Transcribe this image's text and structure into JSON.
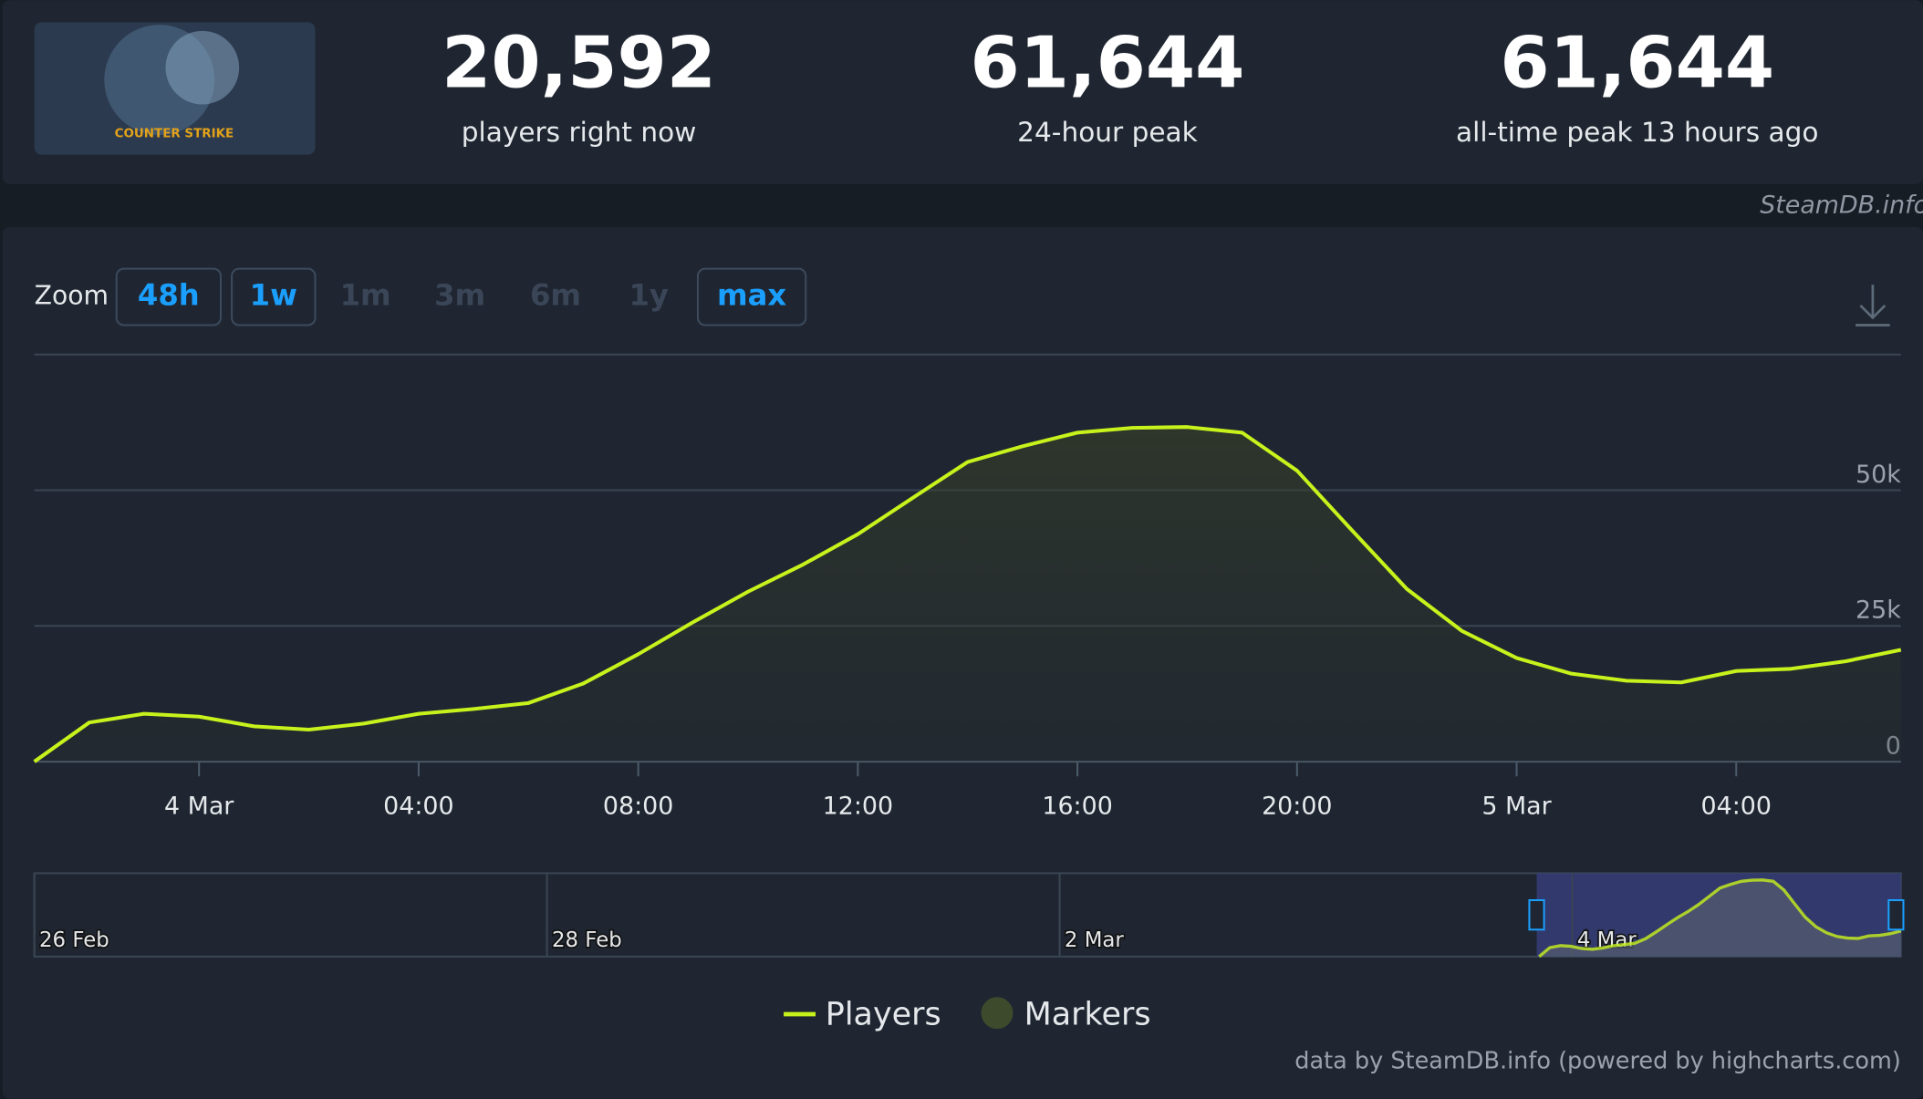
{
  "header": {
    "logo_text": "COUNTER STRIKE",
    "stats": [
      {
        "value": "20,592",
        "label": "players right now"
      },
      {
        "value": "61,644",
        "label": "24-hour peak"
      },
      {
        "value": "61,644",
        "label": "all-time peak 13 hours ago"
      }
    ],
    "watermark": "SteamDB.info"
  },
  "zoom": {
    "label": "Zoom",
    "buttons": [
      {
        "label": "48h",
        "enabled": true
      },
      {
        "label": "1w",
        "enabled": true
      },
      {
        "label": "1m",
        "enabled": false
      },
      {
        "label": "3m",
        "enabled": false
      },
      {
        "label": "6m",
        "enabled": false
      },
      {
        "label": "1y",
        "enabled": false
      },
      {
        "label": "max",
        "enabled": true
      }
    ]
  },
  "chart_data": {
    "type": "line",
    "x": [
      "3 Mar 21:00",
      "3 Mar 22:00",
      "3 Mar 23:00",
      "4 Mar 00:00",
      "4 Mar 01:00",
      "4 Mar 02:00",
      "4 Mar 03:00",
      "4 Mar 04:00",
      "4 Mar 05:00",
      "4 Mar 06:00",
      "4 Mar 07:00",
      "4 Mar 08:00",
      "4 Mar 09:00",
      "4 Mar 10:00",
      "4 Mar 11:00",
      "4 Mar 12:00",
      "4 Mar 13:00",
      "4 Mar 14:00",
      "4 Mar 15:00",
      "4 Mar 16:00",
      "4 Mar 17:00",
      "4 Mar 18:00",
      "4 Mar 19:00",
      "4 Mar 20:00",
      "4 Mar 21:00",
      "4 Mar 22:00",
      "4 Mar 23:00",
      "5 Mar 00:00",
      "5 Mar 01:00",
      "5 Mar 02:00",
      "5 Mar 03:00",
      "5 Mar 04:00",
      "5 Mar 05:00",
      "5 Mar 06:00",
      "5 Mar 07:00"
    ],
    "series": [
      {
        "name": "Players",
        "color": "#c8f21c",
        "values": [
          0,
          7200,
          8800,
          8300,
          6500,
          5900,
          7000,
          8800,
          9700,
          10800,
          14400,
          19800,
          25700,
          31300,
          36300,
          41900,
          48600,
          55200,
          58100,
          60600,
          61500,
          61644,
          60600,
          53600,
          42600,
          31800,
          24100,
          19100,
          16200,
          14900,
          14600,
          16700,
          17100,
          18500,
          20592
        ]
      }
    ],
    "markers_legend": {
      "name": "Markers",
      "color": "#3e4a2c"
    },
    "ylim": [
      0,
      75000
    ],
    "yticks": [
      0,
      {
        "value": 25000,
        "label": "25k"
      },
      {
        "value": 50000,
        "label": "50k"
      }
    ],
    "xticks": [
      {
        "value": "4 Mar 00:00",
        "label": "4 Mar"
      },
      {
        "value": "4 Mar 04:00",
        "label": "04:00"
      },
      {
        "value": "4 Mar 08:00",
        "label": "08:00"
      },
      {
        "value": "4 Mar 12:00",
        "label": "12:00"
      },
      {
        "value": "4 Mar 16:00",
        "label": "16:00"
      },
      {
        "value": "4 Mar 20:00",
        "label": "20:00"
      },
      {
        "value": "5 Mar 00:00",
        "label": "5 Mar"
      },
      {
        "value": "5 Mar 04:00",
        "label": "04:00"
      }
    ],
    "grid": true,
    "navigator": [
      "26 Feb",
      "28 Feb",
      "2 Mar",
      "4 Mar"
    ],
    "credits": "data by SteamDB.info (powered by highcharts.com)"
  }
}
